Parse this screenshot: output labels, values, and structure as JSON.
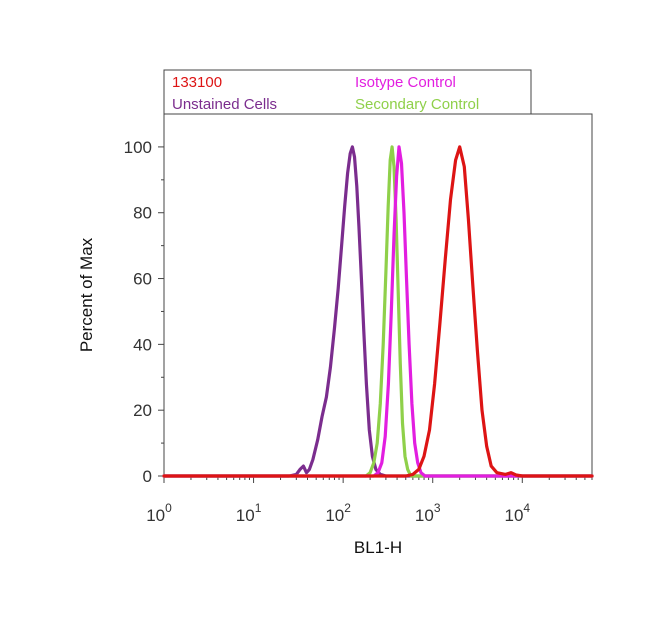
{
  "chart_data": {
    "type": "line",
    "xlabel": "BL1-H",
    "ylabel": "Percent of Max",
    "x_scale": "log",
    "xlim": [
      1,
      60000
    ],
    "ylim": [
      0,
      110
    ],
    "x_ticks": [
      {
        "value": 1,
        "base": "10",
        "exp": "0"
      },
      {
        "value": 10,
        "base": "10",
        "exp": "1"
      },
      {
        "value": 100,
        "base": "10",
        "exp": "2"
      },
      {
        "value": 1000,
        "base": "10",
        "exp": "3"
      },
      {
        "value": 10000,
        "base": "10",
        "exp": "4"
      }
    ],
    "y_ticks": [
      "0",
      "20",
      "40",
      "60",
      "80",
      "100"
    ],
    "grid": false,
    "legend_position": "top",
    "series": [
      {
        "name": "Unstained Cells",
        "color": "#7b2d8e",
        "points": [
          [
            1,
            0
          ],
          [
            25,
            0
          ],
          [
            30,
            0.5
          ],
          [
            33,
            2
          ],
          [
            36,
            3
          ],
          [
            39,
            1
          ],
          [
            42,
            2
          ],
          [
            46,
            5
          ],
          [
            52,
            11
          ],
          [
            58,
            18
          ],
          [
            65,
            24
          ],
          [
            72,
            33
          ],
          [
            80,
            45
          ],
          [
            88,
            57
          ],
          [
            96,
            70
          ],
          [
            104,
            82
          ],
          [
            112,
            92
          ],
          [
            120,
            98
          ],
          [
            127,
            100
          ],
          [
            134,
            97
          ],
          [
            142,
            88
          ],
          [
            150,
            76
          ],
          [
            160,
            60
          ],
          [
            170,
            44
          ],
          [
            182,
            28
          ],
          [
            196,
            14
          ],
          [
            212,
            6
          ],
          [
            232,
            2
          ],
          [
            260,
            0.5
          ],
          [
            300,
            0
          ],
          [
            60000,
            0
          ]
        ]
      },
      {
        "name": "Secondary Control",
        "color": "#8fd04a",
        "points": [
          [
            1,
            0
          ],
          [
            180,
            0
          ],
          [
            200,
            1
          ],
          [
            220,
            4
          ],
          [
            240,
            10
          ],
          [
            260,
            22
          ],
          [
            280,
            40
          ],
          [
            300,
            62
          ],
          [
            318,
            82
          ],
          [
            335,
            96
          ],
          [
            352,
            100
          ],
          [
            370,
            94
          ],
          [
            390,
            78
          ],
          [
            412,
            56
          ],
          [
            435,
            34
          ],
          [
            460,
            16
          ],
          [
            490,
            6
          ],
          [
            525,
            2
          ],
          [
            570,
            0
          ],
          [
            60000,
            0
          ]
        ]
      },
      {
        "name": "Isotype Control",
        "color": "#e21ee0",
        "points": [
          [
            1,
            0
          ],
          [
            220,
            0
          ],
          [
            245,
            1
          ],
          [
            270,
            4
          ],
          [
            295,
            12
          ],
          [
            320,
            28
          ],
          [
            345,
            50
          ],
          [
            370,
            73
          ],
          [
            395,
            91
          ],
          [
            420,
            100
          ],
          [
            448,
            95
          ],
          [
            478,
            80
          ],
          [
            510,
            60
          ],
          [
            545,
            40
          ],
          [
            585,
            22
          ],
          [
            630,
            10
          ],
          [
            680,
            4
          ],
          [
            740,
            1
          ],
          [
            820,
            0
          ],
          [
            60000,
            0
          ]
        ]
      },
      {
        "name": "133100",
        "color": "#dd1414",
        "points": [
          [
            1,
            0
          ],
          [
            500,
            0
          ],
          [
            600,
            0.5
          ],
          [
            700,
            2
          ],
          [
            800,
            6
          ],
          [
            920,
            14
          ],
          [
            1050,
            28
          ],
          [
            1200,
            46
          ],
          [
            1380,
            66
          ],
          [
            1580,
            84
          ],
          [
            1800,
            96
          ],
          [
            2000,
            100
          ],
          [
            2250,
            94
          ],
          [
            2500,
            78
          ],
          [
            2800,
            58
          ],
          [
            3150,
            38
          ],
          [
            3550,
            20
          ],
          [
            4000,
            9
          ],
          [
            4500,
            3
          ],
          [
            5200,
            1
          ],
          [
            6500,
            0.5
          ],
          [
            7500,
            1
          ],
          [
            8500,
            0.3
          ],
          [
            10000,
            0
          ],
          [
            60000,
            0
          ]
        ]
      }
    ]
  }
}
